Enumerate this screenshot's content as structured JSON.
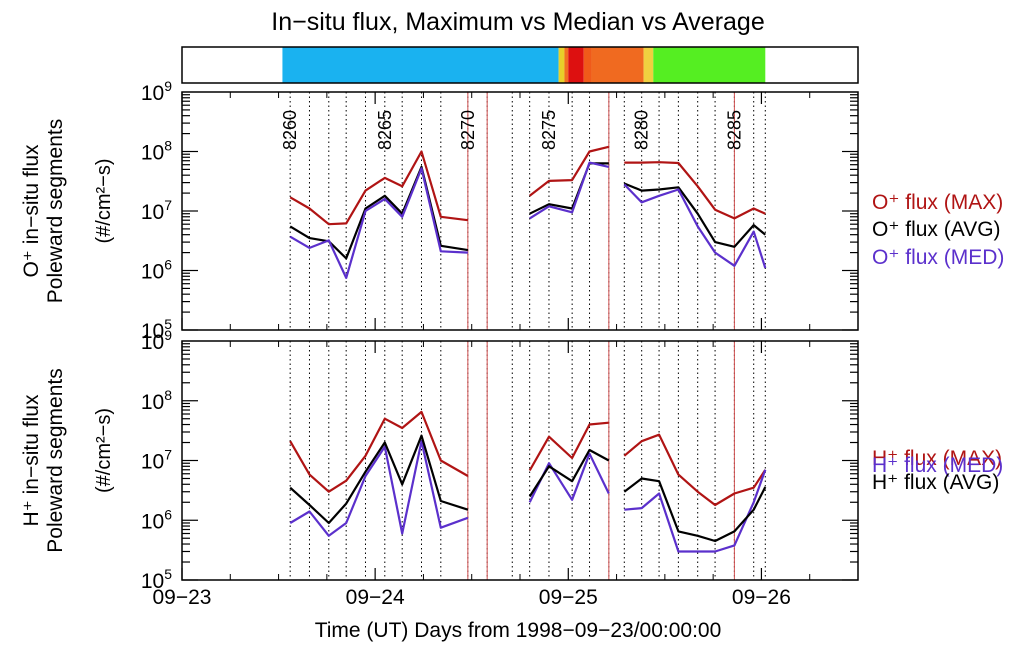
{
  "chart_data": {
    "type": "line",
    "title": "In−situ flux, Maximum vs Median vs Average",
    "xlabel": "Time (UT) Days from 1998−09−23/00:00:00",
    "xlim": [
      0,
      3.5
    ],
    "x_ticks": [
      {
        "x": 0,
        "label": "09−23"
      },
      {
        "x": 1,
        "label": "09−24"
      },
      {
        "x": 2,
        "label": "09−25"
      },
      {
        "x": 3,
        "label": "09−26"
      }
    ],
    "y_scale": "log",
    "ylim_exp": [
      5,
      9
    ],
    "pass_numbers": {
      "x": [
        0.56,
        0.66,
        0.76,
        0.85,
        0.95,
        1.05,
        1.14,
        1.24,
        1.34,
        1.48,
        1.58,
        1.71,
        1.8,
        1.9,
        2.02,
        2.11,
        2.21,
        2.29,
        2.38,
        2.47,
        2.57,
        2.67,
        2.76,
        2.86,
        2.96,
        3.02
      ],
      "labels": [
        {
          "x": 0.56,
          "text": "8260"
        },
        {
          "x": 1.05,
          "text": "8265"
        },
        {
          "x": 1.48,
          "text": "8270"
        },
        {
          "x": 1.9,
          "text": "8275"
        },
        {
          "x": 2.38,
          "text": "8280"
        },
        {
          "x": 2.86,
          "text": "8285"
        }
      ]
    },
    "red_lines_x": [
      1.48,
      1.58,
      2.21,
      2.86
    ],
    "color_bar": {
      "segments": [
        {
          "x0": 0.52,
          "x1": 1.95,
          "color": "#1ab2f0"
        },
        {
          "x0": 1.95,
          "x1": 1.98,
          "color": "#e8d02a"
        },
        {
          "x0": 1.98,
          "x1": 2.0,
          "color": "#f07020"
        },
        {
          "x0": 2.0,
          "x1": 2.08,
          "color": "#dd1010"
        },
        {
          "x0": 2.08,
          "x1": 2.12,
          "color": "#f05a1a"
        },
        {
          "x0": 2.12,
          "x1": 2.39,
          "color": "#f06a20"
        },
        {
          "x0": 2.39,
          "x1": 2.44,
          "color": "#f0d040"
        },
        {
          "x0": 2.44,
          "x1": 3.02,
          "color": "#55ee22"
        }
      ]
    },
    "panels": [
      {
        "ylabel_line1": "O⁺ in−situ flux",
        "ylabel_line2": "Poleward segments",
        "units": "(#/cm²−s)",
        "series": [
          {
            "name": "O⁺ flux (MAX)",
            "color": "#b01414",
            "segments": [
              {
                "x": [
                  0.56,
                  0.66,
                  0.76,
                  0.85,
                  0.95,
                  1.05,
                  1.14,
                  1.24,
                  1.34,
                  1.48
                ],
                "y": [
                  17000000.0,
                  11000000.0,
                  6000000.0,
                  6200000.0,
                  22000000.0,
                  36000000.0,
                  26000000.0,
                  100000000.0,
                  8000000.0,
                  7000000.0
                ]
              },
              {
                "x": [
                  1.8,
                  1.9,
                  2.02,
                  2.11,
                  2.21
                ],
                "y": [
                  18000000.0,
                  32000000.0,
                  33000000.0,
                  100000000.0,
                  120000000.0
                ]
              },
              {
                "x": [
                  2.29,
                  2.38,
                  2.47,
                  2.57,
                  2.67,
                  2.76,
                  2.86,
                  2.96,
                  3.02
                ],
                "y": [
                  65000000.0,
                  65000000.0,
                  66000000.0,
                  64000000.0,
                  26000000.0,
                  10500000.0,
                  7500000.0,
                  11000000.0,
                  9000000.0
                ]
              }
            ]
          },
          {
            "name": "O⁺ flux (AVG)",
            "color": "#000000",
            "segments": [
              {
                "x": [
                  0.56,
                  0.66,
                  0.76,
                  0.85,
                  0.95,
                  1.05,
                  1.14,
                  1.24,
                  1.34,
                  1.48
                ],
                "y": [
                  5500000.0,
                  3500000.0,
                  3100000.0,
                  1600000.0,
                  11000000.0,
                  18000000.0,
                  9000000.0,
                  55000000.0,
                  2600000.0,
                  2200000.0
                ]
              },
              {
                "x": [
                  1.8,
                  1.9,
                  2.02,
                  2.11,
                  2.21
                ],
                "y": [
                  9000000.0,
                  13000000.0,
                  11000000.0,
                  63000000.0,
                  63000000.0
                ]
              },
              {
                "x": [
                  2.29,
                  2.38,
                  2.47,
                  2.57,
                  2.67,
                  2.76,
                  2.86,
                  2.96,
                  3.02
                ],
                "y": [
                  29000000.0,
                  22000000.0,
                  23000000.0,
                  25000000.0,
                  9000000.0,
                  3000000.0,
                  2500000.0,
                  5800000.0,
                  4000000.0
                ]
              }
            ]
          },
          {
            "name": "O⁺ flux (MED)",
            "color": "#5b30cc",
            "segments": [
              {
                "x": [
                  0.56,
                  0.66,
                  0.76,
                  0.85,
                  0.95,
                  1.05,
                  1.14,
                  1.24,
                  1.34,
                  1.48
                ],
                "y": [
                  3700000.0,
                  2400000.0,
                  3200000.0,
                  750000.0,
                  10000000.0,
                  16000000.0,
                  8000000.0,
                  52000000.0,
                  2100000.0,
                  2000000.0
                ]
              },
              {
                "x": [
                  1.8,
                  1.9,
                  2.02,
                  2.11,
                  2.21
                ],
                "y": [
                  7500000.0,
                  12000000.0,
                  9500000.0,
                  65000000.0,
                  55000000.0
                ]
              },
              {
                "x": [
                  2.29,
                  2.38,
                  2.47,
                  2.57,
                  2.67,
                  2.76,
                  2.86,
                  2.96,
                  3.02
                ],
                "y": [
                  28000000.0,
                  14000000.0,
                  18000000.0,
                  23000000.0,
                  5500000.0,
                  2000000.0,
                  1200000.0,
                  4500000.0,
                  1100000.0
                ]
              }
            ]
          }
        ]
      },
      {
        "ylabel_line1": "H⁺ in−situ flux",
        "ylabel_line2": "Poleward segments",
        "units": "(#/cm²−s)",
        "series": [
          {
            "name": "H⁺ flux (MAX)",
            "color": "#b01414",
            "segments": [
              {
                "x": [
                  0.56,
                  0.66,
                  0.76,
                  0.85,
                  0.95,
                  1.05,
                  1.14,
                  1.24,
                  1.34,
                  1.48
                ],
                "y": [
                  21000000.0,
                  5800000.0,
                  3000000.0,
                  4600000.0,
                  12000000.0,
                  50000000.0,
                  35000000.0,
                  65000000.0,
                  10000000.0,
                  5500000.0
                ]
              },
              {
                "x": [
                  1.8,
                  1.9,
                  2.02,
                  2.11,
                  2.21
                ],
                "y": [
                  6800000.0,
                  25000000.0,
                  11000000.0,
                  40000000.0,
                  43000000.0
                ]
              },
              {
                "x": [
                  2.29,
                  2.38,
                  2.47,
                  2.57,
                  2.67,
                  2.76,
                  2.86,
                  2.96,
                  3.02
                ],
                "y": [
                  12000000.0,
                  21000000.0,
                  27000000.0,
                  5800000.0,
                  3000000.0,
                  1800000.0,
                  2800000.0,
                  3500000.0,
                  7000000.0
                ]
              }
            ]
          },
          {
            "name": "H⁺ flux (MED)",
            "color": "#5b30cc",
            "segments": [
              {
                "x": [
                  0.56,
                  0.66,
                  0.76,
                  0.85,
                  0.95,
                  1.05,
                  1.14,
                  1.24,
                  1.34,
                  1.48
                ],
                "y": [
                  900000.0,
                  1400000.0,
                  550000.0,
                  900000.0,
                  5500000.0,
                  17000000.0,
                  600000.0,
                  21000000.0,
                  750000.0,
                  1100000.0
                ]
              },
              {
                "x": [
                  1.8,
                  1.9,
                  2.02,
                  2.11,
                  2.21
                ],
                "y": [
                  2000000.0,
                  9000000.0,
                  2200000.0,
                  13000000.0,
                  2800000.0
                ]
              },
              {
                "x": [
                  2.29,
                  2.38,
                  2.47,
                  2.57,
                  2.67,
                  2.76,
                  2.86,
                  2.96,
                  3.02
                ],
                "y": [
                  1500000.0,
                  1600000.0,
                  2800000.0,
                  300000.0,
                  300000.0,
                  300000.0,
                  380000.0,
                  2000000.0,
                  7000000.0
                ]
              }
            ]
          },
          {
            "name": "H⁺ flux (AVG)",
            "color": "#000000",
            "segments": [
              {
                "x": [
                  0.56,
                  0.66,
                  0.76,
                  0.85,
                  0.95,
                  1.05,
                  1.14,
                  1.24,
                  1.34,
                  1.48
                ],
                "y": [
                  3500000.0,
                  1800000.0,
                  900000.0,
                  1900000.0,
                  6500000.0,
                  20000000.0,
                  4000000.0,
                  26000000.0,
                  2100000.0,
                  1500000.0
                ]
              },
              {
                "x": [
                  1.8,
                  1.9,
                  2.02,
                  2.11,
                  2.21
                ],
                "y": [
                  2500000.0,
                  8000000.0,
                  4500000.0,
                  15000000.0,
                  10000000.0
                ]
              },
              {
                "x": [
                  2.29,
                  2.38,
                  2.47,
                  2.57,
                  2.67,
                  2.76,
                  2.86,
                  2.96,
                  3.02
                ],
                "y": [
                  3000000.0,
                  5000000.0,
                  4500000.0,
                  650000.0,
                  550000.0,
                  450000.0,
                  650000.0,
                  1500000.0,
                  3600000.0
                ]
              }
            ]
          }
        ]
      }
    ]
  }
}
